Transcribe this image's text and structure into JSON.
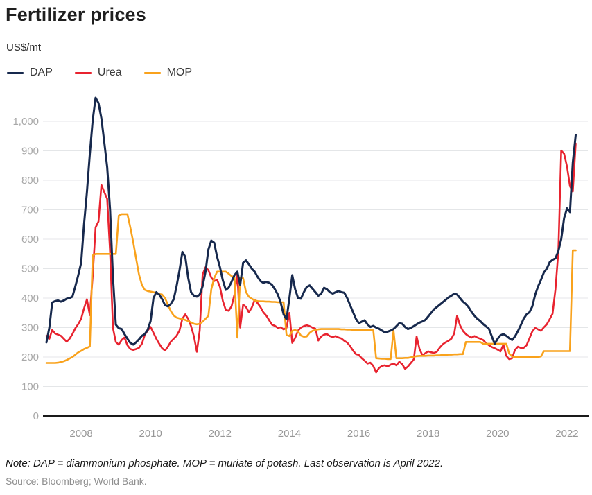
{
  "chart_data": {
    "type": "line",
    "title": "Fertilizer prices",
    "unit": "US$/mt",
    "frequency": "monthly",
    "x_start": "2007-01",
    "x_end": "2022-04",
    "x_tick_labels": [
      "2008",
      "2010",
      "2012",
      "2014",
      "2016",
      "2018",
      "2020",
      "2022"
    ],
    "x_tick_month_index": [
      12,
      36,
      60,
      84,
      108,
      132,
      156,
      180
    ],
    "y_ticks": [
      0,
      100,
      200,
      300,
      400,
      500,
      600,
      700,
      800,
      900,
      1000
    ],
    "ylim": [
      0,
      1100
    ],
    "grid": "horizontal",
    "legend_position": "top-left",
    "series": [
      {
        "name": "DAP",
        "color": "#17294d",
        "values": [
          250,
          300,
          385,
          390,
          392,
          388,
          392,
          398,
          400,
          405,
          440,
          478,
          520,
          650,
          760,
          890,
          1005,
          1080,
          1062,
          1010,
          930,
          845,
          700,
          470,
          310,
          298,
          295,
          278,
          262,
          248,
          242,
          250,
          260,
          272,
          278,
          292,
          322,
          400,
          420,
          412,
          396,
          376,
          372,
          380,
          396,
          440,
          494,
          557,
          540,
          470,
          420,
          408,
          405,
          412,
          440,
          490,
          565,
          595,
          588,
          540,
          505,
          460,
          428,
          435,
          455,
          478,
          490,
          445,
          520,
          528,
          515,
          500,
          490,
          472,
          458,
          452,
          455,
          452,
          445,
          430,
          412,
          385,
          345,
          328,
          400,
          478,
          430,
          400,
          398,
          420,
          438,
          443,
          432,
          420,
          408,
          415,
          435,
          430,
          420,
          415,
          420,
          424,
          420,
          418,
          400,
          376,
          353,
          330,
          315,
          320,
          325,
          311,
          302,
          306,
          300,
          296,
          290,
          284,
          286,
          290,
          295,
          305,
          315,
          313,
          302,
          295,
          299,
          305,
          311,
          317,
          321,
          326,
          338,
          350,
          362,
          370,
          378,
          386,
          394,
          402,
          408,
          415,
          412,
          400,
          388,
          380,
          369,
          353,
          340,
          330,
          322,
          312,
          304,
          296,
          270,
          245,
          262,
          274,
          278,
          272,
          264,
          258,
          270,
          288,
          308,
          330,
          345,
          352,
          372,
          412,
          440,
          462,
          487,
          500,
          522,
          530,
          535,
          560,
          600,
          672,
          705,
          692,
          860,
          954
        ]
      },
      {
        "name": "Urea",
        "color": "#e8232f",
        "values": [
          272,
          262,
          292,
          280,
          276,
          272,
          262,
          252,
          262,
          278,
          298,
          312,
          330,
          365,
          396,
          342,
          478,
          640,
          660,
          784,
          760,
          737,
          557,
          298,
          251,
          242,
          258,
          266,
          240,
          227,
          224,
          227,
          231,
          245,
          275,
          290,
          302,
          282,
          262,
          245,
          230,
          222,
          235,
          252,
          262,
          272,
          290,
          330,
          345,
          330,
          305,
          270,
          218,
          290,
          480,
          505,
          495,
          470,
          458,
          462,
          438,
          390,
          360,
          357,
          372,
          412,
          482,
          300,
          378,
          370,
          352,
          368,
          394,
          383,
          370,
          352,
          341,
          325,
          310,
          306,
          299,
          301,
          294,
          299,
          350,
          248,
          265,
          290,
          300,
          305,
          308,
          305,
          300,
          296,
          256,
          270,
          276,
          278,
          271,
          268,
          271,
          266,
          263,
          255,
          249,
          237,
          222,
          210,
          207,
          196,
          188,
          178,
          181,
          170,
          148,
          163,
          170,
          172,
          168,
          174,
          178,
          172,
          184,
          176,
          160,
          168,
          180,
          192,
          270,
          227,
          206,
          213,
          219,
          216,
          214,
          218,
          232,
          243,
          250,
          255,
          262,
          280,
          340,
          308,
          289,
          278,
          271,
          266,
          271,
          266,
          262,
          258,
          247,
          240,
          234,
          230,
          225,
          219,
          242,
          204,
          193,
          196,
          224,
          235,
          231,
          231,
          240,
          263,
          287,
          299,
          294,
          289,
          301,
          311,
          329,
          347,
          430,
          560,
          901,
          890,
          846,
          780,
          762,
          925
        ]
      },
      {
        "name": "MOP",
        "color": "#f9a21c",
        "values": [
          180,
          180,
          180,
          180,
          181,
          183,
          186,
          190,
          195,
          200,
          208,
          216,
          221,
          227,
          231,
          236,
          545,
          550,
          550,
          550,
          550,
          550,
          550,
          550,
          550,
          680,
          685,
          685,
          685,
          640,
          590,
          535,
          480,
          445,
          428,
          424,
          422,
          420,
          417,
          414,
          412,
          400,
          378,
          356,
          341,
          334,
          331,
          329,
          326,
          322,
          318,
          313,
          311,
          313,
          320,
          330,
          340,
          430,
          468,
          490,
          490,
          490,
          490,
          483,
          475,
          470,
          266,
          470,
          468,
          420,
          405,
          398,
          392,
          390,
          389,
          389,
          388,
          388,
          387,
          387,
          386,
          386,
          386,
          275,
          271,
          289,
          292,
          287,
          273,
          269,
          270,
          282,
          289,
          292,
          294,
          295,
          295,
          295,
          295,
          295,
          295,
          295,
          294,
          294,
          293,
          293,
          292,
          292,
          292,
          292,
          292,
          292,
          291,
          291,
          196,
          195,
          194,
          194,
          193,
          193,
          290,
          196,
          196,
          196,
          197,
          197,
          199,
          201,
          203,
          204,
          204,
          204,
          205,
          205,
          205,
          206,
          206,
          207,
          207,
          208,
          208,
          209,
          209,
          210,
          210,
          251,
          251,
          251,
          251,
          251,
          251,
          245,
          245,
          245,
          245,
          245,
          245,
          245,
          245,
          245,
          212,
          202,
          200,
          200,
          200,
          200,
          200,
          200,
          200,
          200,
          200,
          202,
          220,
          220,
          220,
          220,
          220,
          220,
          220,
          220,
          220,
          220,
          562,
          562
        ]
      }
    ],
    "note": "Note: DAP = diammonium phosphate. MOP = muriate of potash. Last observation is April 2022.",
    "source": "Source: Bloomberg; World Bank."
  },
  "style_colors": {
    "axis_line": "#1a1a1a",
    "grid_line": "#e4e6e8",
    "y_tick_label": "#a8a8a8",
    "x_tick_label": "#979797"
  }
}
